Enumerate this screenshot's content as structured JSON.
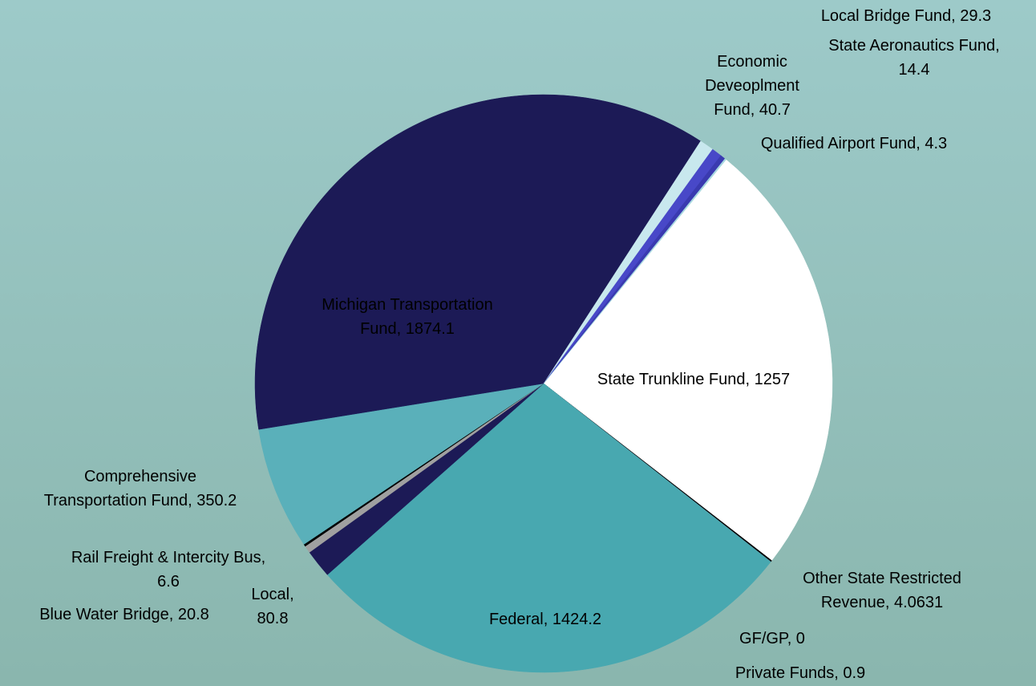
{
  "chart_data": {
    "type": "pie",
    "categories": [
      "State Trunkline Fund",
      "Other State Restricted Revenue",
      "GF/GP",
      "Private Funds",
      "Federal",
      "Local",
      "Blue Water Bridge",
      "Rail Freight & Intercity Bus",
      "Comprehensive Transportation Fund",
      "Michigan Transportation Fund",
      "Economic Deveoplment Fund",
      "Local Bridge Fund",
      "State Aeronautics Fund",
      "Qualified Airport Fund"
    ],
    "values": [
      1257,
      4.0631,
      0,
      0.9,
      1424.2,
      80.8,
      20.8,
      6.6,
      350.2,
      1874.1,
      40.7,
      29.3,
      14.4,
      4.3
    ],
    "value_labels": [
      "State Trunkline Fund, 1257",
      "Other State Restricted\nRevenue, 4.0631",
      "GF/GP, 0",
      "Private Funds, 0.9",
      "Federal, 1424.2",
      "Local,\n80.8",
      "Blue Water Bridge, 20.8",
      "Rail Freight & Intercity Bus,\n6.6",
      "Comprehensive\nTransportation Fund, 350.2",
      "Michigan Transportation\nFund, 1874.1",
      "Economic\nDeveoplment\nFund, 40.7",
      "Local Bridge Fund, 29.3",
      "State Aeronautics Fund,\n14.4",
      "Qualified Airport Fund, 4.3"
    ],
    "colors": [
      "#ffffff",
      "#000000",
      "#1c1a56",
      "#5a8a8a",
      "#48a8b0",
      "#1c1a56",
      "#a0a0a0",
      "#000000",
      "#5ab0ba",
      "#1c1a56",
      "#c8e8ee",
      "#4848c8",
      "#3a3ab0",
      "#a8d8e0"
    ]
  }
}
